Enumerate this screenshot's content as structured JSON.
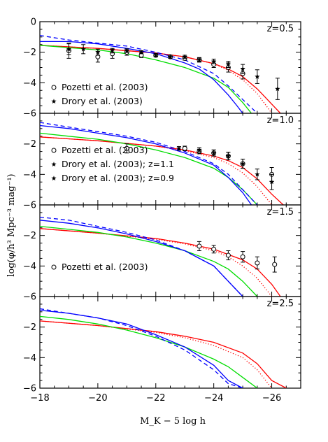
{
  "chart_data": {
    "type": "line",
    "xlabel": "M_K − 5 log h",
    "ylabel": "log(φ/h³ Mpc⁻³ mag⁻¹)",
    "xlim": [
      -18,
      -27
    ],
    "x_ticks": [
      -18,
      -20,
      -22,
      -24,
      -26
    ],
    "y_ticks": [
      0,
      -2,
      -4,
      -6
    ],
    "colors": {
      "red": "#ff0000",
      "green": "#00dd00",
      "blue": "#0000ff",
      "black": "#000000"
    },
    "panels": [
      {
        "label": "z=0.5",
        "ylim": [
          -6,
          0
        ],
        "y_tick_labels": [
          "0",
          "−2",
          "−4",
          "−6"
        ],
        "legend": [
          "Pozetti et al. (2003)",
          "Drory et al. (2003)"
        ],
        "series": [
          {
            "color": "red",
            "style": "solid",
            "x": [
              -18,
              -20,
              -22,
              -23,
              -24,
              -24.5,
              -25,
              -25.5,
              -26,
              -26.3
            ],
            "y": [
              -1.55,
              -1.75,
              -2.05,
              -2.3,
              -2.75,
              -3.1,
              -3.6,
              -4.4,
              -5.4,
              -6
            ]
          },
          {
            "color": "red",
            "style": "dotted",
            "x": [
              -18,
              -20,
              -22,
              -23,
              -24,
              -24.5,
              -25,
              -25.5,
              -26
            ],
            "y": [
              -1.55,
              -1.75,
              -2.05,
              -2.3,
              -2.75,
              -3.2,
              -3.8,
              -4.7,
              -6
            ]
          },
          {
            "color": "green",
            "style": "solid",
            "x": [
              -18,
              -19,
              -20,
              -21,
              -22,
              -23,
              -24,
              -24.5,
              -25,
              -25.3
            ],
            "y": [
              -1.55,
              -1.7,
              -1.85,
              -2.1,
              -2.5,
              -3.0,
              -3.7,
              -4.3,
              -5.3,
              -6
            ]
          },
          {
            "color": "blue",
            "style": "solid",
            "x": [
              -18,
              -19,
              -20,
              -21,
              -22,
              -23,
              -23.5,
              -24,
              -24.5,
              -24.8,
              -25
            ],
            "y": [
              -1.3,
              -1.3,
              -1.45,
              -1.75,
              -2.1,
              -2.7,
              -3.1,
              -3.8,
              -4.8,
              -5.5,
              -6
            ]
          },
          {
            "color": "blue",
            "style": "dashed",
            "x": [
              -18,
              -19,
              -20,
              -21,
              -22,
              -23,
              -24,
              -24.5,
              -25,
              -25.5
            ],
            "y": [
              -0.9,
              -1.2,
              -1.4,
              -1.6,
              -2.0,
              -2.5,
              -3.4,
              -4.2,
              -5.1,
              -6
            ]
          }
        ],
        "points": [
          {
            "marker": "circle",
            "x": [
              -19,
              -20,
              -20.5,
              -21,
              -21.5,
              -22,
              -22.5,
              -23,
              -23.5,
              -24,
              -24.5,
              -25
            ],
            "y": [
              -1.9,
              -2.3,
              -2.1,
              -2.0,
              -2.2,
              -2.2,
              -2.3,
              -2.4,
              -2.5,
              -2.8,
              -3.0,
              -3.4
            ],
            "err": [
              0.5,
              0.35,
              0.3,
              0.2,
              0.15,
              0.1,
              0.1,
              0.12,
              0.15,
              0.2,
              0.3,
              0.35
            ]
          },
          {
            "marker": "star",
            "x": [
              -19,
              -19.5,
              -20,
              -20.5,
              -21,
              -21.5,
              -22,
              -22.5,
              -23,
              -23.5,
              -24,
              -24.5,
              -25,
              -25.5,
              -26.2
            ],
            "y": [
              -1.8,
              -1.8,
              -2.0,
              -1.9,
              -1.9,
              -2.0,
              -2.2,
              -2.3,
              -2.3,
              -2.5,
              -2.6,
              -2.8,
              -3.1,
              -3.6,
              -4.4
            ],
            "err": [
              0.35,
              0.3,
              0.2,
              0.15,
              0.12,
              0.1,
              0.1,
              0.1,
              0.1,
              0.12,
              0.15,
              0.2,
              0.3,
              0.45,
              0.7
            ]
          }
        ]
      },
      {
        "label": "z=1.0",
        "ylim": [
          -6,
          0
        ],
        "y_tick_labels": [
          "",
          "−2",
          "−4",
          "−6"
        ],
        "legend": [
          "Pozetti et al. (2003)",
          "Drory et al. (2003); z=1.1",
          "Drory et al. (2003); z=0.9"
        ],
        "series": [
          {
            "color": "red",
            "style": "solid",
            "x": [
              -18,
              -20,
              -22,
              -23,
              -24,
              -24.5,
              -25,
              -25.5,
              -26,
              -26.4
            ],
            "y": [
              -1.55,
              -1.8,
              -2.15,
              -2.4,
              -2.8,
              -3.1,
              -3.55,
              -4.3,
              -5.3,
              -6
            ]
          },
          {
            "color": "red",
            "style": "dotted",
            "x": [
              -18,
              -20,
              -22,
              -23,
              -24,
              -24.5,
              -25,
              -25.5,
              -26
            ],
            "y": [
              -1.55,
              -1.8,
              -2.15,
              -2.45,
              -2.9,
              -3.3,
              -3.9,
              -4.8,
              -6
            ]
          },
          {
            "color": "green",
            "style": "solid",
            "x": [
              -18,
              -19,
              -20,
              -21,
              -22,
              -23,
              -24,
              -24.5,
              -25,
              -25.5
            ],
            "y": [
              -1.3,
              -1.5,
              -1.7,
              -2.0,
              -2.4,
              -2.9,
              -3.6,
              -4.2,
              -5.0,
              -6
            ]
          },
          {
            "color": "blue",
            "style": "solid",
            "x": [
              -18,
              -19,
              -20,
              -21,
              -22,
              -23,
              -24,
              -24.5,
              -25,
              -25.3
            ],
            "y": [
              -0.8,
              -1.0,
              -1.3,
              -1.6,
              -2.0,
              -2.6,
              -3.4,
              -4.2,
              -5.2,
              -6
            ]
          },
          {
            "color": "blue",
            "style": "dashed",
            "x": [
              -18,
              -19,
              -20,
              -21,
              -22,
              -23,
              -24,
              -24.5,
              -25,
              -25.5
            ],
            "y": [
              -0.6,
              -0.9,
              -1.2,
              -1.5,
              -1.9,
              -2.5,
              -3.3,
              -4.0,
              -5.0,
              -6
            ]
          }
        ],
        "points": [
          {
            "marker": "circle",
            "x": [
              -21,
              -23,
              -23.5,
              -24,
              -24.5,
              -25,
              -26
            ],
            "y": [
              -2.3,
              -2.3,
              -2.5,
              -2.6,
              -2.8,
              -3.3,
              -4.0
            ],
            "err": [
              0.3,
              0.15,
              0.15,
              0.2,
              0.25,
              0.3,
              0.45
            ]
          },
          {
            "marker": "star",
            "x": [
              -22.8,
              -23.5,
              -24,
              -24.5,
              -25,
              -25.5,
              -26
            ],
            "y": [
              -2.3,
              -2.4,
              -2.6,
              -2.8,
              -3.3,
              -4.0,
              -4.5
            ],
            "err": [
              0.12,
              0.15,
              0.2,
              0.25,
              0.3,
              0.35,
              0.5
            ]
          }
        ]
      },
      {
        "label": "z=1.5",
        "ylim": [
          -6,
          0
        ],
        "y_tick_labels": [
          "",
          "−2",
          "−4",
          "−6"
        ],
        "legend": [
          "Pozetti et al. (2003)"
        ],
        "series": [
          {
            "color": "red",
            "style": "solid",
            "x": [
              -18,
              -20,
              -22,
              -23,
              -24,
              -25,
              -25.5,
              -26,
              -26.3
            ],
            "y": [
              -1.55,
              -1.85,
              -2.2,
              -2.5,
              -2.9,
              -3.6,
              -4.2,
              -5.2,
              -6
            ]
          },
          {
            "color": "red",
            "style": "dotted",
            "x": [
              -18,
              -20,
              -22,
              -23,
              -24,
              -24.5,
              -25,
              -25.5,
              -26
            ],
            "y": [
              -1.55,
              -1.85,
              -2.25,
              -2.55,
              -3.0,
              -3.4,
              -4.0,
              -4.8,
              -6
            ]
          },
          {
            "color": "green",
            "style": "solid",
            "x": [
              -18,
              -19,
              -20,
              -21,
              -22,
              -23,
              -24,
              -24.5,
              -25,
              -25.5
            ],
            "y": [
              -1.4,
              -1.6,
              -1.8,
              -2.1,
              -2.5,
              -3.0,
              -3.7,
              -4.2,
              -5.0,
              -6
            ]
          },
          {
            "color": "blue",
            "style": "solid",
            "x": [
              -18,
              -19,
              -20,
              -21,
              -22,
              -23,
              -24,
              -24.5,
              -25
            ],
            "y": [
              -1.0,
              -1.2,
              -1.5,
              -1.9,
              -2.4,
              -3.0,
              -4.0,
              -5.0,
              -6
            ]
          },
          {
            "color": "blue",
            "style": "dashed",
            "x": [
              -18,
              -19,
              -20,
              -21,
              -22,
              -23,
              -24,
              -24.5,
              -25
            ],
            "y": [
              -0.8,
              -1.0,
              -1.4,
              -1.8,
              -2.3,
              -3.0,
              -4.0,
              -5.0,
              -6
            ]
          }
        ],
        "points": [
          {
            "marker": "circle",
            "x": [
              -23.5,
              -24,
              -24.5,
              -25,
              -25.5,
              -26.1
            ],
            "y": [
              -2.7,
              -2.9,
              -3.3,
              -3.4,
              -3.8,
              -3.9
            ],
            "err": [
              0.3,
              0.25,
              0.3,
              0.35,
              0.4,
              0.5
            ]
          }
        ]
      },
      {
        "label": "z=2.5",
        "ylim": [
          -6,
          0
        ],
        "y_tick_labels": [
          "",
          "−2",
          "−4",
          "−6"
        ],
        "legend": [],
        "series": [
          {
            "color": "red",
            "style": "solid",
            "x": [
              -18,
              -20,
              -22,
              -23,
              -24,
              -25,
              -25.5,
              -26,
              -26.5
            ],
            "y": [
              -1.6,
              -1.9,
              -2.3,
              -2.6,
              -3.0,
              -3.7,
              -4.4,
              -5.5,
              -6
            ]
          },
          {
            "color": "red",
            "style": "dotted",
            "x": [
              -18,
              -20,
              -22,
              -23,
              -24,
              -25,
              -25.5,
              -26
            ],
            "y": [
              -1.6,
              -1.9,
              -2.35,
              -2.7,
              -3.2,
              -4.0,
              -4.8,
              -6
            ]
          },
          {
            "color": "green",
            "style": "solid",
            "x": [
              -18,
              -19,
              -20,
              -21,
              -22,
              -23,
              -24,
              -24.5,
              -25,
              -25.5
            ],
            "y": [
              -1.3,
              -1.5,
              -1.8,
              -2.2,
              -2.7,
              -3.3,
              -4.1,
              -4.6,
              -5.3,
              -6
            ]
          },
          {
            "color": "blue",
            "style": "solid",
            "x": [
              -18,
              -19,
              -20,
              -21,
              -22,
              -23,
              -24,
              -24.5,
              -25
            ],
            "y": [
              -0.9,
              -1.1,
              -1.4,
              -1.8,
              -2.5,
              -3.3,
              -4.5,
              -5.5,
              -6
            ]
          },
          {
            "color": "blue",
            "style": "dashed",
            "x": [
              -18,
              -19,
              -20,
              -21,
              -22,
              -23,
              -24,
              -24.5,
              -25
            ],
            "y": [
              -0.8,
              -1.1,
              -1.4,
              -1.9,
              -2.6,
              -3.5,
              -4.8,
              -5.7,
              -6
            ]
          }
        ],
        "points": []
      }
    ]
  }
}
